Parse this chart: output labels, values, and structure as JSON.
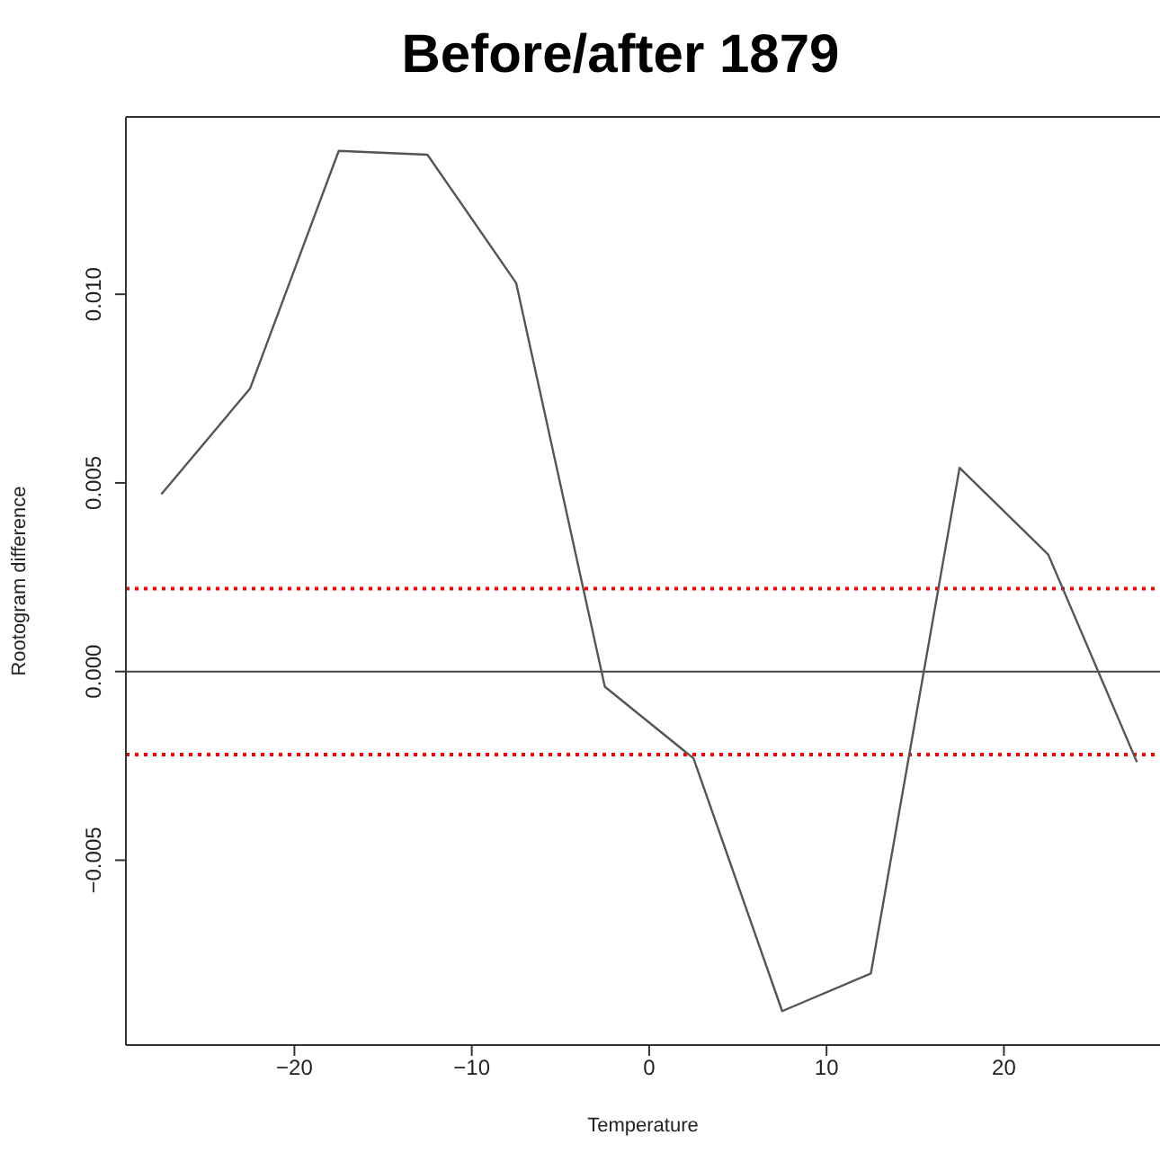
{
  "chart_data": {
    "type": "line",
    "title": "Before/after 1879",
    "xlabel": "Temperature",
    "ylabel": "Rootogram difference",
    "x": [
      -27.5,
      -22.5,
      -17.5,
      -12.5,
      -7.5,
      -2.5,
      2.5,
      7.5,
      12.5,
      17.5,
      22.5,
      27.5
    ],
    "series": [
      {
        "color": "#555555",
        "values": [
          0.0047,
          0.0075,
          0.0138,
          0.0137,
          0.0103,
          -0.0004,
          -0.0023,
          -0.009,
          -0.008,
          0.0054,
          0.0031,
          -0.0024
        ]
      }
    ],
    "xlim": [
      -29.5,
      28.8
    ],
    "ylim": [
      -0.0099,
      0.0147
    ],
    "xticks": [
      {
        "value": -20,
        "label": "−20"
      },
      {
        "value": -10,
        "label": "−10"
      },
      0,
      10,
      20
    ],
    "yticks": [
      {
        "value": -0.005,
        "label": "−0.005"
      },
      {
        "value": 0,
        "label": "0.000"
      },
      0.005,
      {
        "value": 0.01,
        "label": "0.010"
      }
    ],
    "ref_lines": [
      {
        "axis": "y",
        "value": 0,
        "color": "#444444",
        "line_style": "solid"
      },
      {
        "axis": "y",
        "value": 0.0022,
        "color": "#ff0000",
        "line_style": "dotted"
      },
      {
        "axis": "y",
        "value": -0.0022,
        "color": "#ff0000",
        "line_style": "dotted"
      }
    ],
    "marker": "none",
    "line_style": "solid"
  }
}
